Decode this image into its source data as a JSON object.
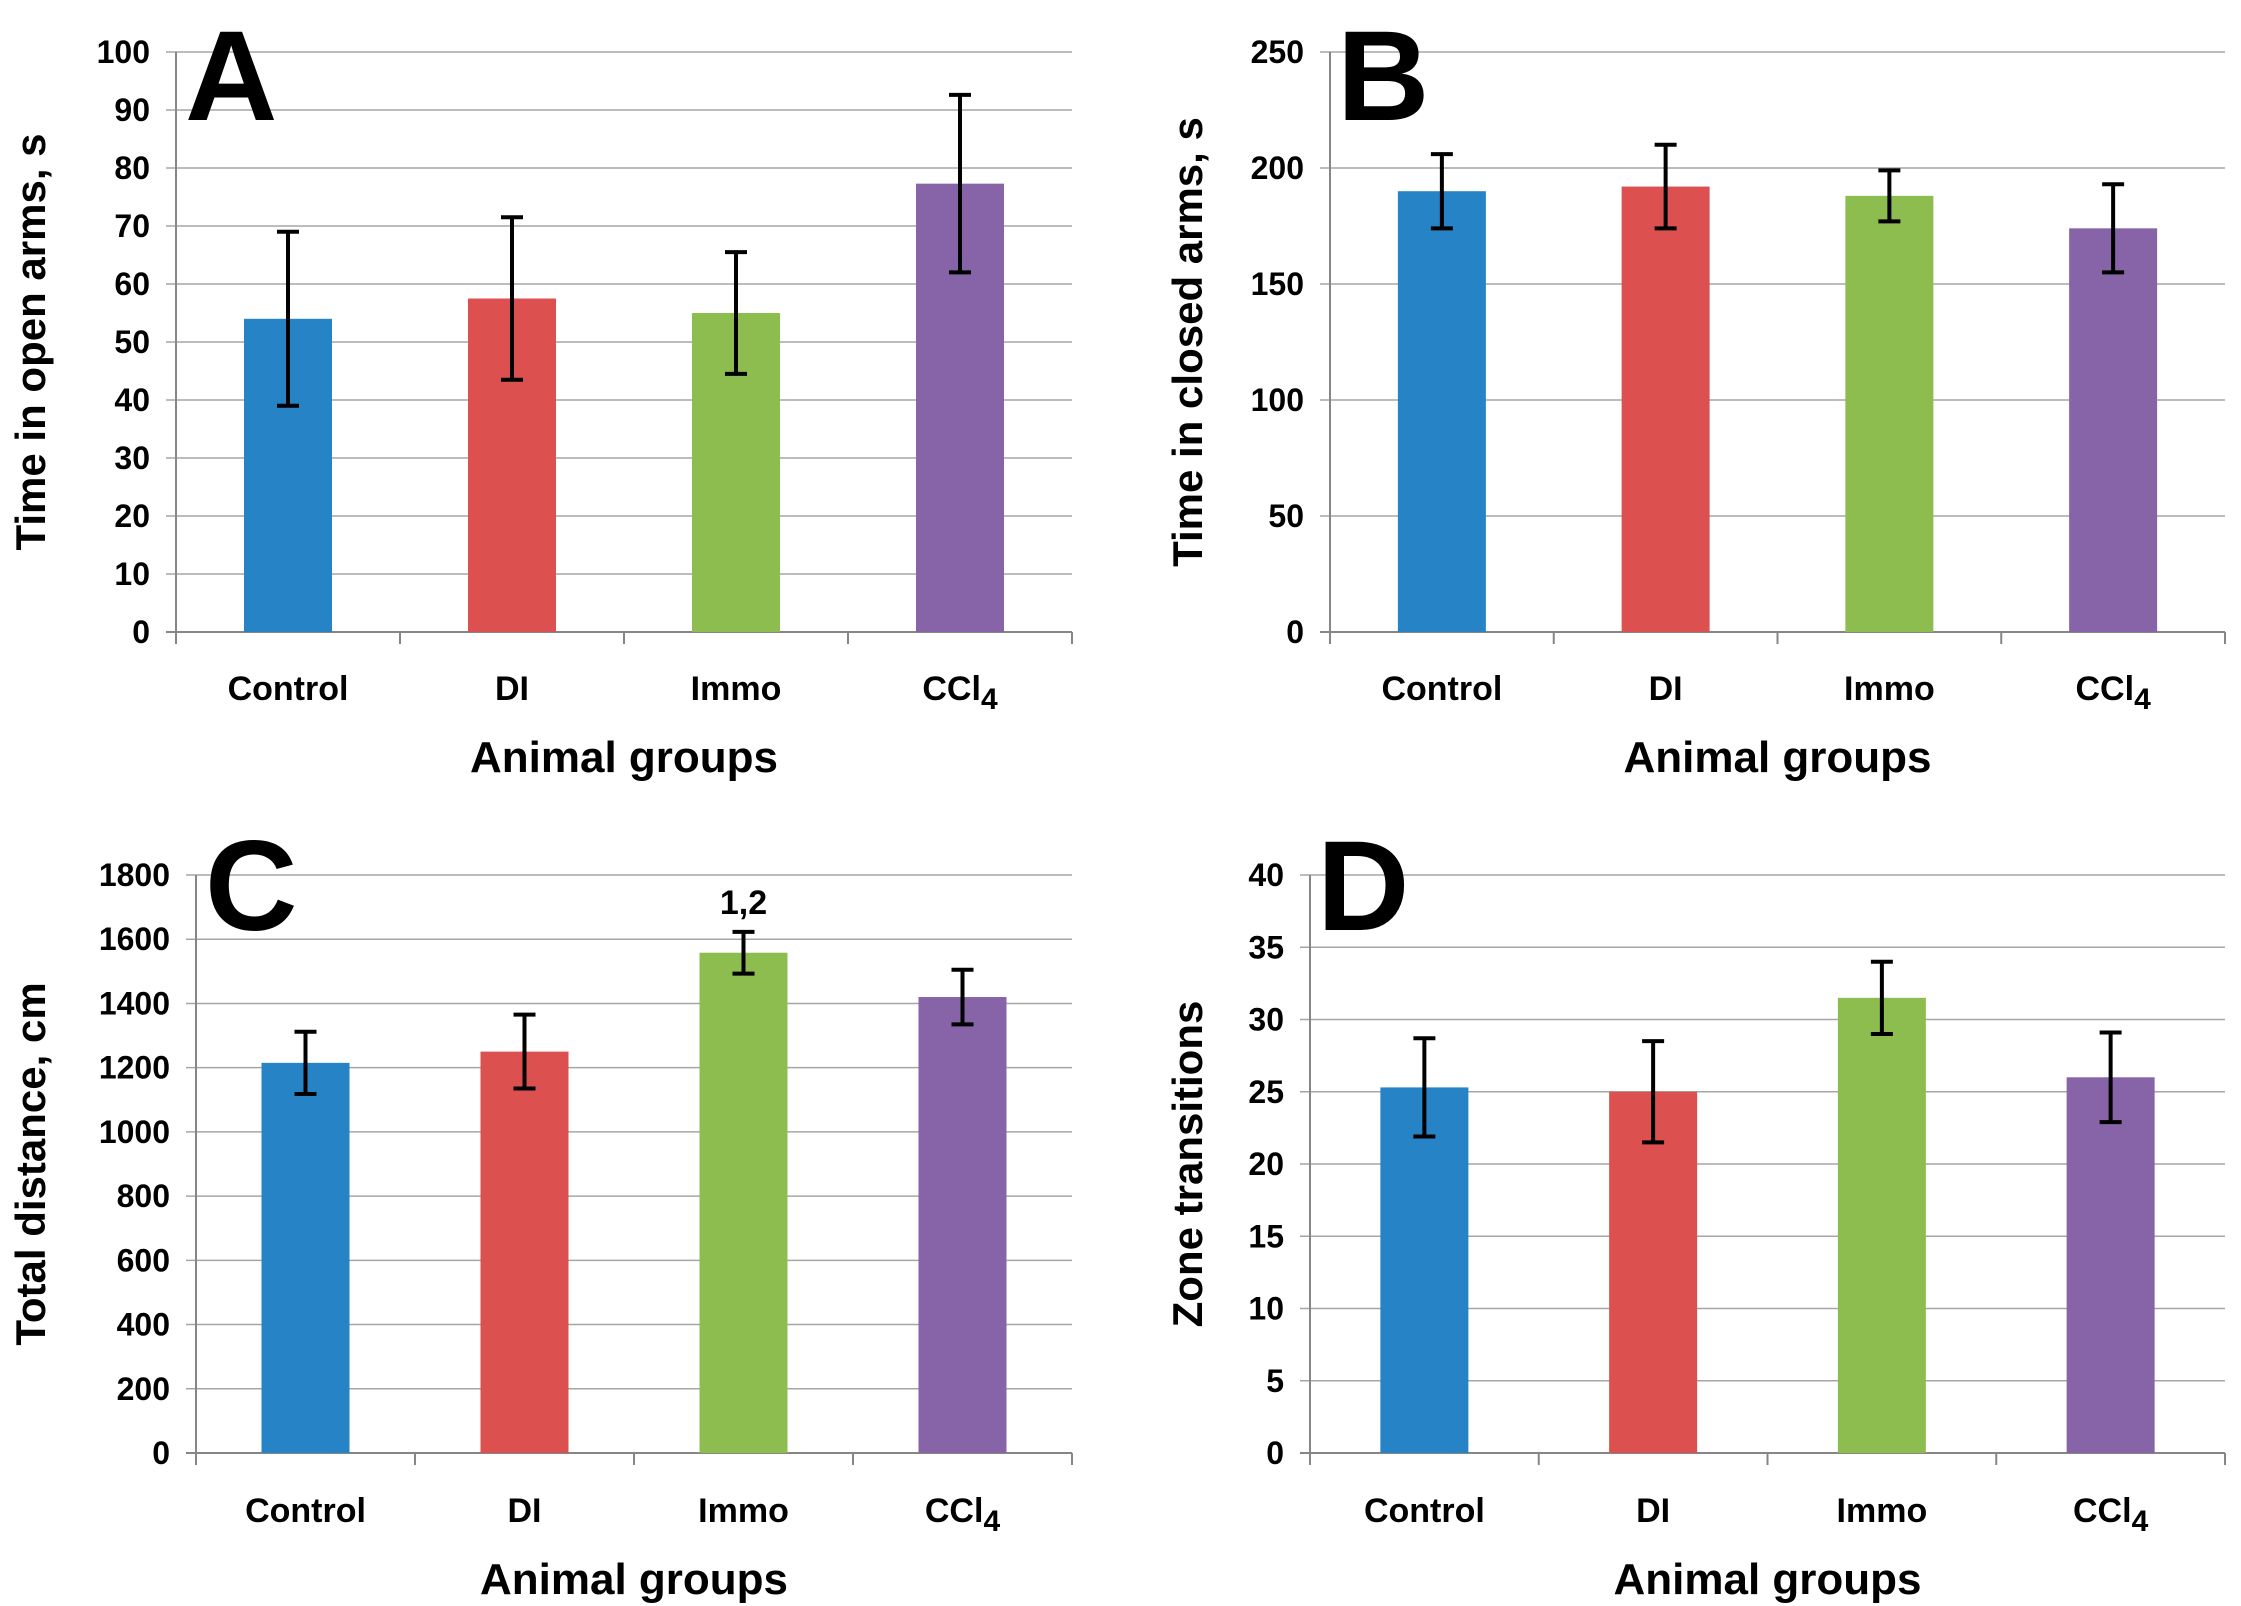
{
  "chart_data": [
    {
      "panel": "A",
      "type": "bar",
      "ylabel": "Time in open arms, s",
      "xlabel": "Animal groups",
      "categories": [
        "Control",
        "DI",
        "Immo",
        "CCl4"
      ],
      "category_labels": [
        {
          "main": "Control",
          "sub": ""
        },
        {
          "main": "DI",
          "sub": ""
        },
        {
          "main": "Immo",
          "sub": ""
        },
        {
          "main": "CCl",
          "sub": "4"
        }
      ],
      "values": [
        54,
        57.5,
        55,
        77.3
      ],
      "errors": [
        15,
        14,
        10.5,
        15.3
      ],
      "ylim": [
        0,
        100
      ],
      "yticks": [
        0,
        10,
        20,
        30,
        40,
        50,
        60,
        70,
        80,
        90,
        100
      ],
      "annotations": [],
      "colors": [
        "#2683c6",
        "#dd5050",
        "#8dbc4f",
        "#8764a8"
      ]
    },
    {
      "panel": "B",
      "type": "bar",
      "ylabel": "Time in closed arms, s",
      "xlabel": "Animal groups",
      "categories": [
        "Control",
        "DI",
        "Immo",
        "CCl4"
      ],
      "category_labels": [
        {
          "main": "Control",
          "sub": ""
        },
        {
          "main": "DI",
          "sub": ""
        },
        {
          "main": "Immo",
          "sub": ""
        },
        {
          "main": "CCl",
          "sub": "4"
        }
      ],
      "values": [
        190,
        192,
        188,
        174
      ],
      "errors": [
        16,
        18,
        11,
        19
      ],
      "ylim": [
        0,
        250
      ],
      "yticks": [
        0,
        50,
        100,
        150,
        200,
        250
      ],
      "annotations": [],
      "colors": [
        "#2683c6",
        "#dd5050",
        "#8dbc4f",
        "#8764a8"
      ]
    },
    {
      "panel": "C",
      "type": "bar",
      "ylabel": "Total distance, cm",
      "xlabel": "Animal groups",
      "categories": [
        "Control",
        "DI",
        "Immo",
        "CCl4"
      ],
      "category_labels": [
        {
          "main": "Control",
          "sub": ""
        },
        {
          "main": "DI",
          "sub": ""
        },
        {
          "main": "Immo",
          "sub": ""
        },
        {
          "main": "CCl",
          "sub": "4"
        }
      ],
      "values": [
        1215,
        1250,
        1558,
        1420
      ],
      "errors": [
        97,
        115,
        65,
        85
      ],
      "ylim": [
        0,
        1800
      ],
      "yticks": [
        0,
        200,
        400,
        600,
        800,
        1000,
        1200,
        1400,
        1600,
        1800
      ],
      "annotations": [
        {
          "category": "Immo",
          "text": "1,2"
        }
      ],
      "colors": [
        "#2683c6",
        "#dd5050",
        "#8dbc4f",
        "#8764a8"
      ]
    },
    {
      "panel": "D",
      "type": "bar",
      "ylabel": "Zone transitions",
      "xlabel": "Animal groups",
      "categories": [
        "Control",
        "DI",
        "Immo",
        "CCl4"
      ],
      "category_labels": [
        {
          "main": "Control",
          "sub": ""
        },
        {
          "main": "DI",
          "sub": ""
        },
        {
          "main": "Immo",
          "sub": ""
        },
        {
          "main": "CCl",
          "sub": "4"
        }
      ],
      "values": [
        25.3,
        25,
        31.5,
        26
      ],
      "errors": [
        3.4,
        3.5,
        2.5,
        3.1
      ],
      "ylim": [
        0,
        40
      ],
      "yticks": [
        0,
        5,
        10,
        15,
        20,
        25,
        30,
        35,
        40
      ],
      "annotations": [],
      "colors": [
        "#2683c6",
        "#dd5050",
        "#8dbc4f",
        "#8764a8"
      ]
    }
  ]
}
